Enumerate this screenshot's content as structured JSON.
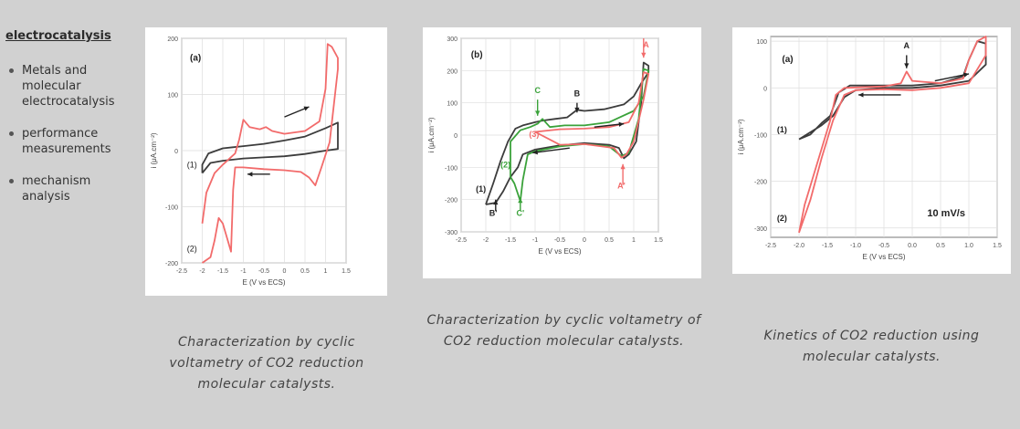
{
  "sidebar": {
    "title": "electrocatalysis",
    "items": [
      {
        "label": "Metals and molecular electrocatalysis"
      },
      {
        "label": "performance measurements"
      },
      {
        "label": "mechanism analysis"
      }
    ]
  },
  "captions": [
    "Characterization by cyclic voltametry of CO2 reduction molecular catalysts.",
    "Characterization by cyclic voltametry of CO2 reduction molecular catalysts.",
    "Kinetics of CO2 reduction using molecular catalysts."
  ],
  "chart_data": [
    {
      "type": "line",
      "panel_label": "(a)",
      "xlabel": "E (V vs ECS)",
      "ylabel": "i (μA.cm⁻²)",
      "xlim": [
        -2.5,
        1.5
      ],
      "ylim": [
        -200,
        200
      ],
      "xticks": [
        -2.5,
        -2.0,
        -1.5,
        -1.0,
        -0.5,
        0.0,
        0.5,
        1.0,
        1.5
      ],
      "xtick_labels": [
        "-2.5",
        "-2",
        "-1.5",
        "-1",
        "-0.5",
        "0",
        "0.5",
        "1",
        "1.5"
      ],
      "yticks": [
        -200,
        -100,
        0,
        100,
        200
      ],
      "grid": true,
      "colors": {
        "black": "#3c3c3c",
        "red": "#f26b6b"
      },
      "series": [
        {
          "name": "(1)",
          "color": "#3c3c3c",
          "points": [
            [
              -2.0,
              -40
            ],
            [
              -1.8,
              -22
            ],
            [
              -1.5,
              -18
            ],
            [
              -1.0,
              -14
            ],
            [
              -0.5,
              -12
            ],
            [
              0.0,
              -10
            ],
            [
              0.5,
              -6
            ],
            [
              1.0,
              0
            ],
            [
              1.3,
              3
            ],
            [
              1.3,
              50
            ],
            [
              1.0,
              40
            ],
            [
              0.5,
              25
            ],
            [
              0.0,
              18
            ],
            [
              -0.5,
              12
            ],
            [
              -1.0,
              8
            ],
            [
              -1.5,
              4
            ],
            [
              -1.85,
              -5
            ],
            [
              -2.0,
              -25
            ],
            [
              -2.0,
              -40
            ]
          ]
        },
        {
          "name": "(2)",
          "color": "#f26b6b",
          "points": [
            [
              -2.0,
              -130
            ],
            [
              -1.9,
              -75
            ],
            [
              -1.7,
              -40
            ],
            [
              -1.5,
              -25
            ],
            [
              -1.2,
              -5
            ],
            [
              -1.1,
              20
            ],
            [
              -1.0,
              55
            ],
            [
              -0.85,
              42
            ],
            [
              -0.6,
              38
            ],
            [
              -0.45,
              42
            ],
            [
              -0.3,
              35
            ],
            [
              0.0,
              30
            ],
            [
              0.5,
              35
            ],
            [
              0.85,
              52
            ],
            [
              1.0,
              110
            ],
            [
              1.05,
              190
            ],
            [
              1.15,
              185
            ],
            [
              1.3,
              165
            ],
            [
              1.3,
              145
            ],
            [
              1.1,
              15
            ],
            [
              0.9,
              -30
            ],
            [
              0.75,
              -62
            ],
            [
              0.6,
              -48
            ],
            [
              0.4,
              -38
            ],
            [
              0.0,
              -35
            ],
            [
              -0.5,
              -33
            ],
            [
              -1.0,
              -30
            ],
            [
              -1.2,
              -30
            ],
            [
              -1.25,
              -70
            ],
            [
              -1.3,
              -180
            ],
            [
              -1.4,
              -155
            ],
            [
              -1.5,
              -130
            ],
            [
              -1.6,
              -120
            ],
            [
              -1.7,
              -160
            ],
            [
              -1.8,
              -190
            ],
            [
              -2.0,
              -200
            ]
          ]
        }
      ],
      "annotations": [
        "(1)",
        "(2)"
      ]
    },
    {
      "type": "line",
      "panel_label": "(b)",
      "xlabel": "E (V vs ECS)",
      "ylabel": "i (μA.cm⁻²)",
      "xlim": [
        -2.5,
        1.5
      ],
      "ylim": [
        -300,
        300
      ],
      "xticks": [
        -2.5,
        -2.0,
        -1.5,
        -1.0,
        -0.5,
        0.0,
        0.5,
        1.0,
        1.5
      ],
      "xtick_labels": [
        "-2.5",
        "-2",
        "-1.5",
        "-1",
        "-0.5",
        "0",
        "0.5",
        "1",
        "1.5"
      ],
      "yticks": [
        -300,
        -200,
        -100,
        0,
        100,
        200,
        300
      ],
      "grid": true,
      "colors": {
        "black": "#3c3c3c",
        "red": "#f26b6b",
        "green": "#3aa23a"
      },
      "series": [
        {
          "name": "(1)",
          "color": "#3c3c3c",
          "points": [
            [
              -2.0,
              -215
            ],
            [
              -1.8,
              -210
            ],
            [
              -1.65,
              -175
            ],
            [
              -1.5,
              -130
            ],
            [
              -1.35,
              -100
            ],
            [
              -1.25,
              -60
            ],
            [
              -1.0,
              -45
            ],
            [
              -0.5,
              -32
            ],
            [
              0.0,
              -25
            ],
            [
              0.5,
              -30
            ],
            [
              0.7,
              -40
            ],
            [
              0.8,
              -72
            ],
            [
              0.9,
              -60
            ],
            [
              1.05,
              -20
            ],
            [
              1.15,
              100
            ],
            [
              1.2,
              225
            ],
            [
              1.3,
              215
            ],
            [
              1.3,
              195
            ],
            [
              1.15,
              160
            ],
            [
              1.0,
              120
            ],
            [
              0.8,
              95
            ],
            [
              0.4,
              80
            ],
            [
              0.0,
              75
            ],
            [
              -0.15,
              78
            ],
            [
              -0.35,
              55
            ],
            [
              -0.6,
              50
            ],
            [
              -0.85,
              45
            ],
            [
              -1.0,
              40
            ],
            [
              -1.25,
              30
            ],
            [
              -1.4,
              20
            ],
            [
              -1.55,
              -20
            ],
            [
              -1.7,
              -80
            ],
            [
              -1.85,
              -150
            ],
            [
              -2.0,
              -215
            ]
          ]
        },
        {
          "name": "(2)",
          "color": "#3aa23a",
          "points": [
            [
              -1.5,
              -130
            ],
            [
              -1.42,
              -150
            ],
            [
              -1.3,
              -205
            ],
            [
              -1.25,
              -140
            ],
            [
              -1.15,
              -60
            ],
            [
              -1.0,
              -50
            ],
            [
              -0.5,
              -35
            ],
            [
              0.0,
              -28
            ],
            [
              0.5,
              -35
            ],
            [
              0.75,
              -65
            ],
            [
              0.9,
              -55
            ],
            [
              1.1,
              50
            ],
            [
              1.2,
              205
            ],
            [
              1.3,
              200
            ],
            [
              1.2,
              120
            ],
            [
              1.0,
              75
            ],
            [
              0.5,
              40
            ],
            [
              0.0,
              30
            ],
            [
              -0.4,
              30
            ],
            [
              -0.7,
              25
            ],
            [
              -0.85,
              50
            ],
            [
              -0.95,
              35
            ],
            [
              -1.1,
              25
            ],
            [
              -1.3,
              15
            ],
            [
              -1.5,
              -20
            ],
            [
              -1.5,
              -130
            ]
          ]
        },
        {
          "name": "(3)",
          "color": "#f26b6b",
          "points": [
            [
              -1.0,
              10
            ],
            [
              -0.5,
              18
            ],
            [
              0.0,
              20
            ],
            [
              0.5,
              25
            ],
            [
              0.9,
              40
            ],
            [
              1.1,
              100
            ],
            [
              1.2,
              195
            ],
            [
              1.3,
              190
            ],
            [
              1.2,
              110
            ],
            [
              1.0,
              -20
            ],
            [
              0.85,
              -60
            ],
            [
              0.75,
              -70
            ],
            [
              0.6,
              -40
            ],
            [
              0.0,
              -28
            ],
            [
              -0.5,
              -30
            ],
            [
              -1.0,
              10
            ]
          ]
        }
      ],
      "annotations": [
        "A",
        "A'",
        "B",
        "B'",
        "C",
        "C'",
        "(1)",
        "(2)",
        "(3)"
      ]
    },
    {
      "type": "line",
      "panel_label": "(a)",
      "xlabel": "E (V vs ECS)",
      "ylabel": "i (μA.cm⁻²)",
      "xlim": [
        -2.5,
        1.5
      ],
      "ylim": [
        -320,
        110
      ],
      "xticks": [
        -2.5,
        -2.0,
        -1.5,
        -1.0,
        -0.5,
        0.0,
        0.5,
        1.0,
        1.5
      ],
      "xtick_labels": [
        "-2.5",
        "-2.0",
        "-1.5",
        "-1.0",
        "-0.5",
        "0.0",
        "0.5",
        "1.0",
        "1.5"
      ],
      "yticks": [
        -300,
        -200,
        -100,
        0,
        100
      ],
      "grid": true,
      "scan_rate_label": "10 mV/s",
      "colors": {
        "black": "#3c3c3c",
        "red": "#f26b6b"
      },
      "series": [
        {
          "name": "(1)",
          "color": "#3c3c3c",
          "points": [
            [
              -2.0,
              -110
            ],
            [
              -1.8,
              -100
            ],
            [
              -1.6,
              -75
            ],
            [
              -1.45,
              -60
            ],
            [
              -1.3,
              -10
            ],
            [
              -1.1,
              5
            ],
            [
              -0.5,
              5
            ],
            [
              0.0,
              5
            ],
            [
              0.5,
              10
            ],
            [
              0.9,
              25
            ],
            [
              1.0,
              60
            ],
            [
              1.15,
              100
            ],
            [
              1.3,
              95
            ],
            [
              1.3,
              50
            ],
            [
              1.0,
              15
            ],
            [
              0.5,
              5
            ],
            [
              0.0,
              0
            ],
            [
              -0.5,
              0
            ],
            [
              -1.0,
              -5
            ],
            [
              -1.2,
              -20
            ],
            [
              -1.4,
              -60
            ],
            [
              -1.6,
              -80
            ],
            [
              -1.8,
              -95
            ],
            [
              -2.0,
              -110
            ]
          ]
        },
        {
          "name": "(2)",
          "color": "#f26b6b",
          "points": [
            [
              -2.0,
              -310
            ],
            [
              -1.9,
              -250
            ],
            [
              -1.75,
              -190
            ],
            [
              -1.6,
              -130
            ],
            [
              -1.45,
              -70
            ],
            [
              -1.35,
              -15
            ],
            [
              -1.2,
              0
            ],
            [
              -0.5,
              3
            ],
            [
              -0.2,
              10
            ],
            [
              -0.1,
              35
            ],
            [
              0.0,
              15
            ],
            [
              0.5,
              10
            ],
            [
              0.9,
              20
            ],
            [
              1.0,
              60
            ],
            [
              1.15,
              100
            ],
            [
              1.3,
              110
            ],
            [
              1.3,
              70
            ],
            [
              1.0,
              10
            ],
            [
              0.5,
              0
            ],
            [
              0.0,
              -5
            ],
            [
              -0.5,
              -3
            ],
            [
              -1.0,
              -5
            ],
            [
              -1.2,
              -15
            ],
            [
              -1.4,
              -70
            ],
            [
              -1.6,
              -150
            ],
            [
              -1.8,
              -240
            ],
            [
              -2.0,
              -310
            ]
          ]
        }
      ],
      "annotations": [
        "A",
        "(1)",
        "(2)"
      ]
    }
  ]
}
